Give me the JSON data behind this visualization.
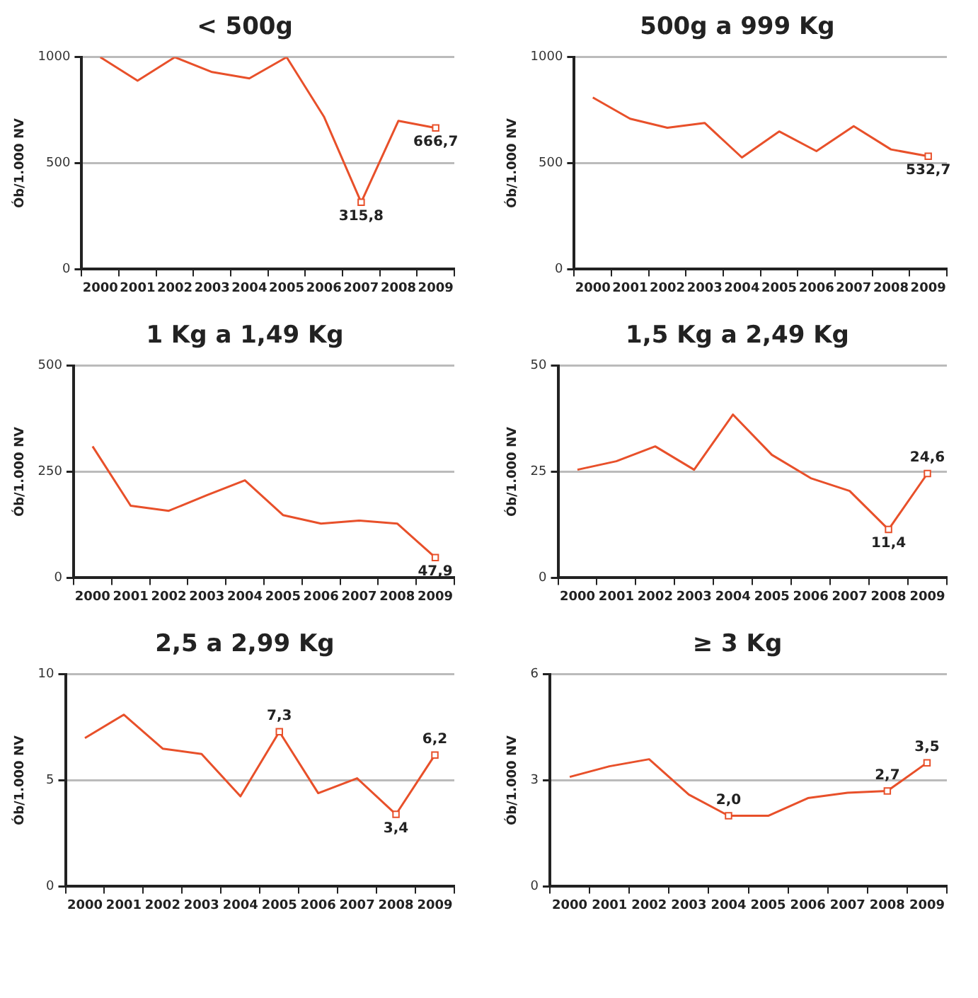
{
  "chart_data": [
    {
      "type": "line",
      "title": "< 500g",
      "ylabel": "Ób/1.000 NV",
      "categories": [
        "2000",
        "2001",
        "2002",
        "2003",
        "2004",
        "2005",
        "2006",
        "2007",
        "2008",
        "2009"
      ],
      "ylim": [
        0,
        1000
      ],
      "yticks": [
        0,
        500,
        1000
      ],
      "grid": "y",
      "legend": false,
      "series": [
        {
          "color": "#e8502a",
          "values": [
            1000,
            889,
            1000,
            930,
            900,
            1000,
            720,
            315.8,
            700,
            666.7
          ],
          "value_labels": [
            null,
            null,
            null,
            null,
            null,
            null,
            null,
            "315,8",
            null,
            "666,7"
          ]
        }
      ]
    },
    {
      "type": "line",
      "title": "500g a 999 Kg",
      "ylabel": "Ób/1.000 NV",
      "categories": [
        "2000",
        "2001",
        "2002",
        "2003",
        "2004",
        "2005",
        "2006",
        "2007",
        "2008",
        "2009"
      ],
      "ylim": [
        0,
        1000
      ],
      "yticks": [
        0,
        500,
        1000
      ],
      "grid": "y",
      "legend": false,
      "series": [
        {
          "color": "#e8502a",
          "values": [
            810,
            710,
            667,
            690,
            527,
            650,
            557,
            675,
            565,
            532.7
          ],
          "value_labels": [
            null,
            null,
            null,
            null,
            null,
            null,
            null,
            null,
            null,
            "532,7"
          ]
        }
      ]
    },
    {
      "type": "line",
      "title": "1 Kg a 1,49 Kg",
      "ylabel": "Ób/1.000 NV",
      "categories": [
        "2000",
        "2001",
        "2002",
        "2003",
        "2004",
        "2005",
        "2006",
        "2007",
        "2008",
        "2009"
      ],
      "ylim": [
        0,
        500
      ],
      "yticks": [
        0,
        250,
        500
      ],
      "grid": "y",
      "legend": false,
      "series": [
        {
          "color": "#e8502a",
          "values": [
            310,
            170,
            158,
            195,
            230,
            148,
            128,
            135,
            128,
            47.9
          ],
          "value_labels": [
            null,
            null,
            null,
            null,
            null,
            null,
            null,
            null,
            null,
            "47,9"
          ]
        }
      ]
    },
    {
      "type": "line",
      "title": "1,5 Kg a 2,49 Kg",
      "ylabel": "Ób/1.000 NV",
      "categories": [
        "2000",
        "2001",
        "2002",
        "2003",
        "2004",
        "2005",
        "2006",
        "2007",
        "2008",
        "2009"
      ],
      "ylim": [
        0,
        50
      ],
      "yticks": [
        0,
        25,
        50
      ],
      "grid": "y",
      "legend": false,
      "series": [
        {
          "color": "#e8502a",
          "values": [
            25.5,
            27.5,
            31,
            25.5,
            38.5,
            29,
            23.5,
            20.5,
            11.4,
            24.6
          ],
          "value_labels": [
            null,
            null,
            null,
            null,
            null,
            null,
            null,
            null,
            "11,4",
            "24,6"
          ]
        }
      ]
    },
    {
      "type": "line",
      "title": "2,5 a 2,99 Kg",
      "ylabel": "Ób/1.000 NV",
      "categories": [
        "2000",
        "2001",
        "2002",
        "2003",
        "2004",
        "2005",
        "2006",
        "2007",
        "2008",
        "2009"
      ],
      "ylim": [
        0,
        10
      ],
      "yticks": [
        0,
        5,
        10
      ],
      "grid": "y",
      "legend": false,
      "series": [
        {
          "color": "#e8502a",
          "values": [
            7.0,
            8.1,
            6.5,
            6.25,
            4.25,
            7.3,
            4.4,
            5.1,
            3.4,
            6.2
          ],
          "value_labels": [
            null,
            null,
            null,
            null,
            null,
            "7,3",
            null,
            null,
            "3,4",
            "6,2"
          ]
        }
      ]
    },
    {
      "type": "line",
      "title": "≥ 3 Kg",
      "ylabel": "Ób/1.000 NV",
      "categories": [
        "2000",
        "2001",
        "2002",
        "2003",
        "2004",
        "2005",
        "2006",
        "2007",
        "2008",
        "2009"
      ],
      "ylim": [
        0,
        6
      ],
      "yticks": [
        0,
        3,
        6
      ],
      "grid": "y",
      "legend": false,
      "series": [
        {
          "color": "#e8502a",
          "values": [
            3.1,
            3.4,
            3.6,
            2.6,
            2.0,
            2.0,
            2.5,
            2.65,
            2.7,
            3.5
          ],
          "value_labels": [
            null,
            null,
            null,
            null,
            "2,0",
            null,
            null,
            null,
            "2,7",
            "3,5"
          ]
        }
      ]
    }
  ]
}
